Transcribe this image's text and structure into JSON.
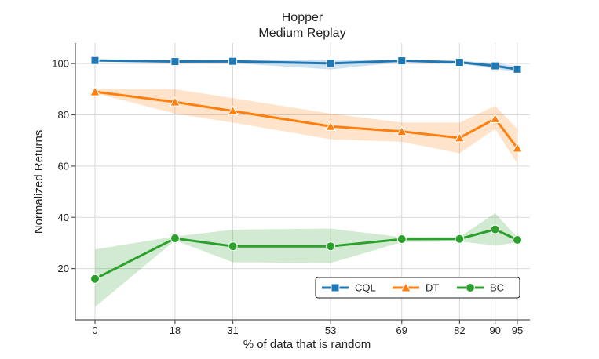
{
  "chart_data": {
    "type": "line",
    "title": "Hopper",
    "subtitle": "Medium Replay",
    "xlabel": "% of data that is random",
    "ylabel": "Normalized Returns",
    "x": [
      0,
      18,
      31,
      53,
      69,
      82,
      90,
      95
    ],
    "x_tick_labels": [
      "0",
      "18",
      "31",
      "53",
      "69",
      "82",
      "90",
      "95"
    ],
    "xlim": [
      0,
      95
    ],
    "ylim": [
      0,
      108
    ],
    "y_ticks": [
      20,
      40,
      60,
      80,
      100
    ],
    "grid": true,
    "legend_position": "lower-right",
    "series": [
      {
        "name": "CQL",
        "color": "#1f77b4",
        "marker": "square",
        "values": [
          101.2,
          100.8,
          100.9,
          100.1,
          101.1,
          100.5,
          99.1,
          97.8
        ],
        "lower": [
          100.8,
          100.3,
          100.2,
          97.7,
          100.6,
          100.0,
          98.0,
          96.6
        ],
        "upper": [
          101.5,
          101.3,
          101.4,
          101.4,
          101.5,
          101.0,
          100.3,
          98.8
        ]
      },
      {
        "name": "DT",
        "color": "#ff7f0e",
        "marker": "triangle",
        "values": [
          89.0,
          85.0,
          81.5,
          75.5,
          73.5,
          71.0,
          78.5,
          67.0
        ],
        "lower": [
          88.5,
          80.5,
          77.0,
          70.5,
          69.5,
          65.0,
          74.5,
          61.0
        ],
        "upper": [
          90.0,
          90.0,
          86.5,
          80.5,
          77.0,
          77.0,
          83.5,
          74.5
        ]
      },
      {
        "name": "BC",
        "color": "#2ca02c",
        "marker": "circle",
        "values": [
          16.0,
          31.8,
          28.7,
          28.7,
          31.5,
          31.6,
          35.3,
          31.2
        ],
        "lower": [
          5.0,
          31.0,
          22.5,
          22.2,
          30.3,
          30.6,
          29.0,
          30.2
        ],
        "upper": [
          27.5,
          32.5,
          35.2,
          35.6,
          32.3,
          32.3,
          41.6,
          32.1
        ]
      }
    ]
  }
}
